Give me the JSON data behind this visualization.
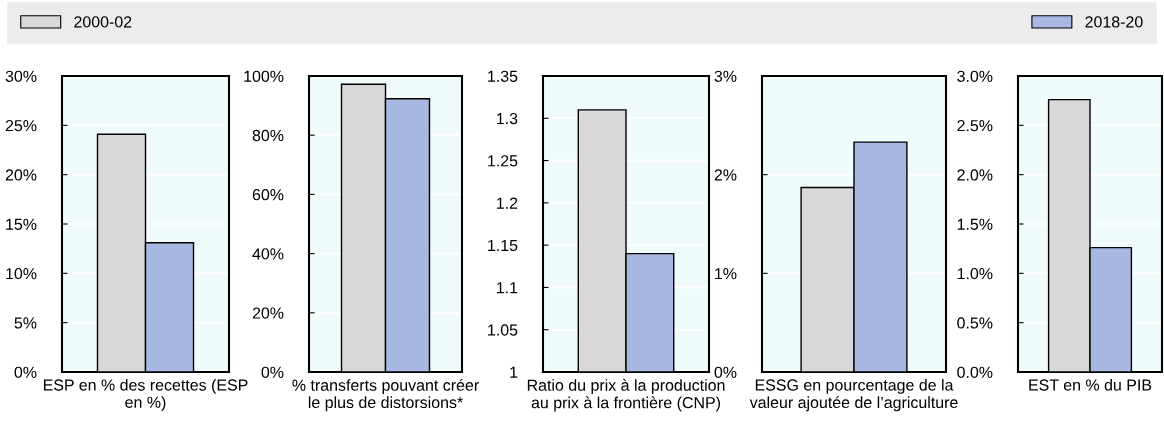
{
  "chart_data": [
    {
      "type": "bar",
      "categories": [
        "ESP en % des recettes (ESP en %)"
      ],
      "series": [
        {
          "name": "2000-02",
          "color": "#d9d9d9",
          "values": [
            24.1
          ]
        },
        {
          "name": "2018-20",
          "color": "#a7b8e2",
          "values": [
            13.1
          ]
        }
      ],
      "ylim": [
        0,
        30
      ],
      "yticks": [
        {
          "value": 0,
          "label": "0%"
        },
        {
          "value": 5,
          "label": "5%"
        },
        {
          "value": 10,
          "label": "10%"
        },
        {
          "value": 15,
          "label": "15%"
        },
        {
          "value": 20,
          "label": "20%"
        },
        {
          "value": 25,
          "label": "25%"
        },
        {
          "value": 30,
          "label": "30%"
        }
      ],
      "grid": "y",
      "legend": "top"
    },
    {
      "type": "bar",
      "categories": [
        "% transferts pouvant créer le plus de distorsions*"
      ],
      "series": [
        {
          "name": "2000-02",
          "color": "#d9d9d9",
          "values": [
            97.2
          ]
        },
        {
          "name": "2018-20",
          "color": "#a7b8e2",
          "values": [
            92.3
          ]
        }
      ],
      "ylim": [
        0,
        100
      ],
      "yticks": [
        {
          "value": 0,
          "label": "0%"
        },
        {
          "value": 20,
          "label": "20%"
        },
        {
          "value": 40,
          "label": "40%"
        },
        {
          "value": 60,
          "label": "60%"
        },
        {
          "value": 80,
          "label": "80%"
        },
        {
          "value": 100,
          "label": "100%"
        }
      ],
      "grid": "y"
    },
    {
      "type": "bar",
      "categories": [
        "Ratio du prix à la production au prix à la frontière (CNP)"
      ],
      "series": [
        {
          "name": "2000-02",
          "color": "#d9d9d9",
          "values": [
            1.31
          ]
        },
        {
          "name": "2018-20",
          "color": "#a7b8e2",
          "values": [
            1.14
          ]
        }
      ],
      "ylim": [
        1,
        1.35
      ],
      "yticks": [
        1,
        1.05,
        1.1,
        1.15,
        1.2,
        1.25,
        1.3,
        1.35
      ],
      "grid": "y"
    },
    {
      "type": "bar",
      "categories": [
        "ESSG en pourcentage de la valeur ajoutée de l’agriculture"
      ],
      "series": [
        {
          "name": "2000-02",
          "color": "#d9d9d9",
          "values": [
            1.87
          ]
        },
        {
          "name": "2018-20",
          "color": "#a7b8e2",
          "values": [
            2.33
          ]
        }
      ],
      "ylim": [
        0,
        3
      ],
      "yticks": [
        {
          "value": 0,
          "label": "0%"
        },
        {
          "value": 1,
          "label": "1%"
        },
        {
          "value": 2,
          "label": "2%"
        },
        {
          "value": 3,
          "label": "3%"
        }
      ],
      "grid": "y"
    },
    {
      "type": "bar",
      "categories": [
        "EST en % du PIB"
      ],
      "series": [
        {
          "name": "2000-02",
          "color": "#d9d9d9",
          "values": [
            2.76
          ]
        },
        {
          "name": "2018-20",
          "color": "#a7b8e2",
          "values": [
            1.26
          ]
        }
      ],
      "ylim": [
        0,
        3
      ],
      "yticks": [
        {
          "value": 0,
          "label": "0.0%"
        },
        {
          "value": 0.5,
          "label": "0.5%"
        },
        {
          "value": 1,
          "label": "1.0%"
        },
        {
          "value": 1.5,
          "label": "1.5%"
        },
        {
          "value": 2,
          "label": "2.0%"
        },
        {
          "value": 2.5,
          "label": "2.5%"
        },
        {
          "value": 3,
          "label": "3.0%"
        }
      ],
      "grid": "y"
    }
  ]
}
